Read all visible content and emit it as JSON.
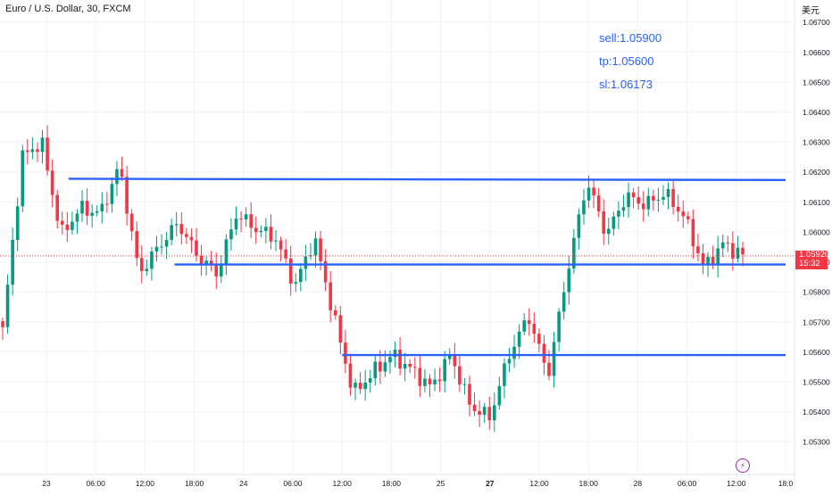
{
  "header": {
    "title": "Euro / U.S. Dollar, 30, FXCM",
    "currency": "美元"
  },
  "annotations": {
    "sell": "sell:1.05900",
    "tp": "tp:1.05600",
    "sl": "sl:1.06173"
  },
  "price_tag": {
    "price": "1.05920",
    "countdown": "15:32"
  },
  "icons": {
    "flash": "lightning-icon"
  },
  "colors": {
    "up": "#089981",
    "down": "#f23645",
    "line": "#2962ff",
    "annotation": "#2962ff",
    "grid": "#f0f3fa",
    "axis_text": "#131722",
    "badge": "#9c27b0"
  },
  "chart_data": {
    "type": "candlestick",
    "title": "Euro / U.S. Dollar, 30, FXCM",
    "ylim": [
      1.0525,
      1.0672
    ],
    "y_ticks": [
      "1.05300",
      "1.05400",
      "1.05500",
      "1.05600",
      "1.05700",
      "1.05800",
      "1.05900",
      "1.06000",
      "1.06100",
      "1.06200",
      "1.06300",
      "1.06400",
      "1.06500",
      "1.06600",
      "1.06700"
    ],
    "x_ticks": [
      "23",
      "06:00",
      "12:00",
      "18:00",
      "24",
      "06:00",
      "12:00",
      "18:00",
      "25",
      "27",
      "12:00",
      "18:00",
      "28",
      "06:00",
      "12:00",
      "18:0"
    ],
    "x_ticks_bold": [
      false,
      false,
      false,
      false,
      false,
      false,
      false,
      false,
      false,
      true,
      false,
      false,
      false,
      false,
      false,
      false
    ],
    "grid": true,
    "last_price": 1.0592,
    "horizontal_lines": [
      {
        "name": "upper-resistance-line",
        "x_start_tick": 0.45,
        "x_end_tick": 15.0,
        "y_start": 1.06177,
        "y_end": 1.06173
      },
      {
        "name": "sell-level-line",
        "x_start_tick": 2.6,
        "x_end_tick": 15.0,
        "y_start": 1.05891,
        "y_end": 1.05891
      },
      {
        "name": "tp-level-line",
        "x_start_tick": 6.0,
        "x_end_tick": 15.0,
        "y_start": 1.05589,
        "y_end": 1.05589
      }
    ],
    "key_levels": [
      1.0567,
      1.0625,
      1.063,
      1.0599,
      1.0608,
      1.0606,
      1.0622,
      1.0586,
      1.0595,
      1.0603,
      1.0592,
      1.0586,
      1.0606,
      1.0601,
      1.0598,
      1.0582,
      1.0598,
      1.0572,
      1.0546,
      1.0553,
      1.0559,
      1.0554,
      1.0548,
      1.0559,
      1.0542,
      1.0538,
      1.0559,
      1.0572,
      1.0552,
      1.0587,
      1.0617,
      1.0599,
      1.0612,
      1.0609,
      1.0613,
      1.0605,
      1.0588,
      1.0596,
      1.0592
    ]
  }
}
